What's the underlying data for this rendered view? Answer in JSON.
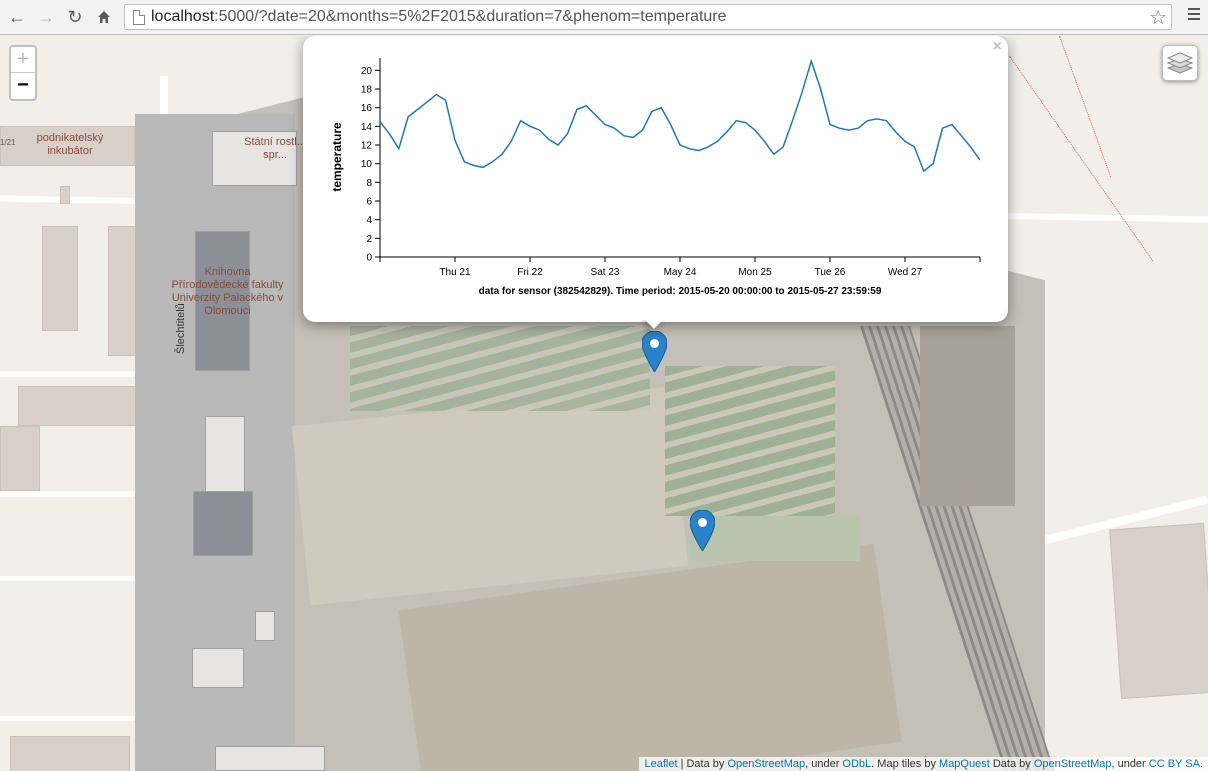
{
  "browser": {
    "url_host": "localhost",
    "url_rest": ":5000/?date=20&months=5%2F2015&duration=7&phenom=temperature",
    "back_icon": "arrow-left-icon",
    "forward_icon": "arrow-right-icon",
    "reload_icon": "reload-icon",
    "home_icon": "home-icon",
    "bookmark_icon": "star-icon",
    "menu_icon": "hamburger-menu-icon"
  },
  "map": {
    "zoom_in": "+",
    "zoom_out": "−",
    "layers_icon": "layers-icon",
    "poi_labels": [
      "podnikatelský inkubátor",
      "Státní rostl... spr...",
      "Knihovna Přírodovědecké fakulty Univerzity Palackého v Olomouci"
    ],
    "street_label": "Šlechtitelů",
    "small_label": "1/21",
    "marker_icon": "map-pin-icon",
    "attribution": {
      "leaflet": "Leaflet",
      "t1": " | Data by ",
      "osm1": "OpenStreetMap",
      "t2": ", under ",
      "odbl": "ODbL",
      "t3": ". Map tiles by ",
      "mapquest": "MapQuest",
      "t4": " Data by ",
      "osm2": "OpenStreetMap",
      "t5": ", under ",
      "ccbysa": "CC BY SA",
      "t6": "."
    }
  },
  "popup": {
    "close": "×",
    "caption": "data for sensor (382542829). Time period: 2015-05-20 00:00:00 to 2015-05-27 23:59:59"
  },
  "chart_data": {
    "type": "line",
    "title": "",
    "xlabel": "",
    "ylabel": "temperature",
    "ylim": [
      0,
      21
    ],
    "yticks": [
      0,
      2,
      4,
      6,
      8,
      10,
      12,
      14,
      16,
      18,
      20
    ],
    "xticks": [
      "Thu 21",
      "Fri 22",
      "Sat 23",
      "May 24",
      "Mon 25",
      "Tue 26",
      "Wed 27"
    ],
    "xrange_days": [
      "2015-05-20 00:00",
      "2015-05-28 00:00"
    ],
    "line_color": "#1f77b4",
    "series": [
      {
        "name": "",
        "x": [
          "2015-05-20 00:00",
          "2015-05-20 03:00",
          "2015-05-20 06:00",
          "2015-05-20 09:00",
          "2015-05-20 12:00",
          "2015-05-20 15:00",
          "2015-05-20 18:00",
          "2015-05-20 21:00",
          "2015-05-21 00:00",
          "2015-05-21 03:00",
          "2015-05-21 06:00",
          "2015-05-21 09:00",
          "2015-05-21 12:00",
          "2015-05-21 15:00",
          "2015-05-21 18:00",
          "2015-05-21 21:00",
          "2015-05-22 00:00",
          "2015-05-22 03:00",
          "2015-05-22 06:00",
          "2015-05-22 09:00",
          "2015-05-22 12:00",
          "2015-05-22 15:00",
          "2015-05-22 18:00",
          "2015-05-22 21:00",
          "2015-05-23 00:00",
          "2015-05-23 03:00",
          "2015-05-23 06:00",
          "2015-05-23 09:00",
          "2015-05-23 12:00",
          "2015-05-23 15:00",
          "2015-05-23 18:00",
          "2015-05-23 21:00",
          "2015-05-24 00:00",
          "2015-05-24 03:00",
          "2015-05-24 06:00",
          "2015-05-24 09:00",
          "2015-05-24 12:00",
          "2015-05-24 15:00",
          "2015-05-24 18:00",
          "2015-05-24 21:00",
          "2015-05-25 00:00",
          "2015-05-25 03:00",
          "2015-05-25 06:00",
          "2015-05-25 09:00",
          "2015-05-25 12:00",
          "2015-05-25 15:00",
          "2015-05-25 18:00",
          "2015-05-25 21:00",
          "2015-05-26 00:00",
          "2015-05-26 03:00",
          "2015-05-26 06:00",
          "2015-05-26 09:00",
          "2015-05-26 12:00",
          "2015-05-26 15:00",
          "2015-05-26 18:00",
          "2015-05-26 21:00",
          "2015-05-27 00:00",
          "2015-05-27 03:00",
          "2015-05-27 06:00",
          "2015-05-27 09:00",
          "2015-05-27 12:00",
          "2015-05-27 15:00",
          "2015-05-27 18:00",
          "2015-05-27 21:00",
          "2015-05-27 23:59"
        ],
        "values": [
          14.5,
          13.2,
          11.6,
          15.0,
          15.8,
          16.6,
          17.4,
          16.8,
          12.5,
          10.2,
          9.8,
          9.6,
          10.2,
          11.0,
          12.4,
          14.6,
          14.0,
          13.6,
          12.6,
          12.0,
          13.2,
          15.8,
          16.2,
          15.2,
          14.2,
          13.8,
          13.0,
          12.8,
          13.6,
          15.6,
          16.0,
          14.2,
          12.0,
          11.6,
          11.4,
          11.8,
          12.4,
          13.4,
          14.6,
          14.4,
          13.6,
          12.4,
          11.0,
          11.8,
          14.6,
          17.6,
          21.0,
          18.0,
          14.2,
          13.8,
          13.6,
          13.8,
          14.6,
          14.8,
          14.6,
          13.4,
          12.4,
          11.8,
          9.2,
          10.0,
          13.8,
          14.2,
          13.0,
          11.8,
          10.4
        ]
      }
    ]
  }
}
